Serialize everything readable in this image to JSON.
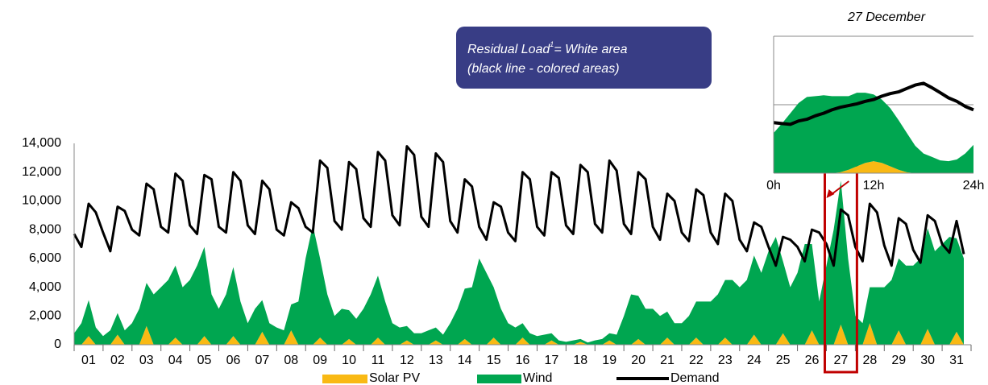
{
  "chart_data": [
    {
      "type": "area",
      "xlim": [
        0,
        744
      ],
      "ylim": [
        0,
        14000
      ],
      "yticks": [
        0,
        {
          "value": 2000,
          "label": "2,000"
        },
        {
          "value": 4000,
          "label": "4,000"
        },
        {
          "value": 6000,
          "label": "6,000"
        },
        {
          "value": 8000,
          "label": "8,000"
        },
        {
          "value": 10000,
          "label": "10,000"
        },
        {
          "value": 12000,
          "label": "12,000"
        },
        {
          "value": 14000,
          "label": "14,000"
        }
      ],
      "xticks": [
        {
          "value": 12,
          "label": "01"
        },
        {
          "value": 36,
          "label": "02"
        },
        {
          "value": 60,
          "label": "03"
        },
        {
          "value": 84,
          "label": "04"
        },
        {
          "value": 108,
          "label": "05"
        },
        {
          "value": 132,
          "label": "06"
        },
        {
          "value": 156,
          "label": "07"
        },
        {
          "value": 180,
          "label": "08"
        },
        {
          "value": 204,
          "label": "09"
        },
        {
          "value": 228,
          "label": "10"
        },
        {
          "value": 252,
          "label": "11"
        },
        {
          "value": 276,
          "label": "12"
        },
        {
          "value": 300,
          "label": "13"
        },
        {
          "value": 324,
          "label": "14"
        },
        {
          "value": 348,
          "label": "15"
        },
        {
          "value": 372,
          "label": "16"
        },
        {
          "value": 396,
          "label": "17"
        },
        {
          "value": 420,
          "label": "18"
        },
        {
          "value": 444,
          "label": "19"
        },
        {
          "value": 468,
          "label": "20"
        },
        {
          "value": 492,
          "label": "21"
        },
        {
          "value": 516,
          "label": "22"
        },
        {
          "value": 540,
          "label": "23"
        },
        {
          "value": 564,
          "label": "24"
        },
        {
          "value": 588,
          "label": "25"
        },
        {
          "value": 612,
          "label": "26"
        },
        {
          "value": 636,
          "label": "27"
        },
        {
          "value": 660,
          "label": "28"
        },
        {
          "value": 684,
          "label": "29"
        },
        {
          "value": 708,
          "label": "30"
        },
        {
          "value": 732,
          "label": "31"
        }
      ],
      "grid": false,
      "highlight": {
        "tick": 26,
        "color": "#c00000"
      },
      "annotation": {
        "line1": "Residual Load",
        "footnote": "1",
        "line1_rest": "= White area",
        "line2": "(black line - colored areas)"
      },
      "x": [
        0,
        6,
        12,
        18,
        24,
        30,
        36,
        42,
        48,
        54,
        60,
        66,
        72,
        78,
        84,
        90,
        96,
        102,
        108,
        114,
        120,
        126,
        132,
        138,
        144,
        150,
        156,
        162,
        168,
        174,
        180,
        186,
        192,
        198,
        204,
        210,
        216,
        222,
        228,
        234,
        240,
        246,
        252,
        258,
        264,
        270,
        276,
        282,
        288,
        294,
        300,
        306,
        312,
        318,
        324,
        330,
        336,
        342,
        348,
        354,
        360,
        366,
        372,
        378,
        384,
        390,
        396,
        402,
        408,
        414,
        420,
        426,
        432,
        438,
        444,
        450,
        456,
        462,
        468,
        474,
        480,
        486,
        492,
        498,
        504,
        510,
        516,
        522,
        528,
        534,
        540,
        546,
        552,
        558,
        564,
        570,
        576,
        582,
        588,
        594,
        600,
        606,
        612,
        618,
        624,
        630,
        636,
        642,
        648,
        654,
        660,
        666,
        672,
        678,
        684,
        690,
        696,
        702,
        708,
        714,
        720,
        726,
        732,
        738
      ],
      "series": [
        {
          "name": "Solar PV",
          "type": "area",
          "color": "#f9b914",
          "values": [
            0,
            0,
            600,
            0,
            0,
            0,
            700,
            0,
            0,
            0,
            1300,
            0,
            0,
            0,
            500,
            0,
            0,
            0,
            600,
            0,
            0,
            0,
            600,
            0,
            0,
            0,
            900,
            0,
            0,
            0,
            1000,
            0,
            0,
            0,
            500,
            0,
            0,
            0,
            400,
            0,
            0,
            0,
            500,
            0,
            0,
            0,
            300,
            0,
            0,
            0,
            300,
            0,
            0,
            0,
            400,
            0,
            0,
            0,
            500,
            0,
            0,
            0,
            500,
            0,
            0,
            0,
            300,
            0,
            0,
            0,
            200,
            0,
            0,
            0,
            300,
            0,
            0,
            0,
            400,
            0,
            0,
            0,
            500,
            0,
            0,
            0,
            500,
            0,
            0,
            0,
            500,
            0,
            0,
            0,
            700,
            0,
            0,
            0,
            800,
            0,
            0,
            0,
            1000,
            0,
            0,
            0,
            1400,
            0,
            0,
            0,
            1500,
            0,
            0,
            0,
            1000,
            0,
            0,
            0,
            1100,
            0,
            0,
            0,
            900,
            0
          ]
        },
        {
          "name": "Wind",
          "type": "area",
          "color": "#00a650",
          "values": [
            800,
            1500,
            2500,
            1200,
            600,
            1000,
            1500,
            1000,
            1500,
            2500,
            3000,
            3500,
            4000,
            4500,
            5000,
            4000,
            4500,
            5500,
            6200,
            3500,
            2500,
            3500,
            4800,
            3000,
            1500,
            2500,
            2200,
            1500,
            1200,
            1000,
            1800,
            3000,
            6000,
            8300,
            5500,
            3500,
            2000,
            2500,
            2000,
            1800,
            2500,
            3500,
            4300,
            3000,
            1500,
            1200,
            1000,
            800,
            800,
            1000,
            900,
            700,
            1500,
            2500,
            3500,
            4000,
            6000,
            5000,
            3500,
            2500,
            1500,
            1200,
            1000,
            800,
            600,
            700,
            500,
            300,
            200,
            300,
            200,
            150,
            300,
            400,
            500,
            700,
            2000,
            3500,
            3000,
            2500,
            2500,
            2000,
            1800,
            1500,
            1500,
            2000,
            2500,
            3000,
            3000,
            3500,
            4000,
            4500,
            4000,
            4500,
            5500,
            5000,
            6500,
            7500,
            5000,
            4000,
            5000,
            7000,
            6000,
            3000,
            5500,
            8000,
            10000,
            6000,
            2000,
            1500,
            2500,
            4000,
            4000,
            4500,
            5000,
            5500,
            5500,
            6000,
            7000,
            6500,
            7000,
            7500,
            6500,
            6000
          ]
        },
        {
          "name": "Demand",
          "type": "line",
          "color": "#000000",
          "values": [
            7700,
            6800,
            9800,
            9200,
            7800,
            6500,
            9600,
            9300,
            8000,
            7600,
            11200,
            10800,
            8200,
            7800,
            11900,
            11400,
            8300,
            7700,
            11800,
            11500,
            8200,
            7800,
            12000,
            11400,
            8300,
            7700,
            11400,
            10800,
            8000,
            7600,
            9900,
            9500,
            8200,
            7800,
            12800,
            12300,
            8600,
            8000,
            12700,
            12200,
            8800,
            8200,
            13400,
            12800,
            9000,
            8300,
            13800,
            13200,
            8900,
            8200,
            13300,
            12700,
            8600,
            7800,
            11500,
            11000,
            8200,
            7300,
            9900,
            9600,
            7800,
            7200,
            12000,
            11500,
            8200,
            7600,
            12000,
            11600,
            8300,
            7700,
            12500,
            12000,
            8400,
            7800,
            12800,
            12100,
            8400,
            7700,
            12000,
            11500,
            8200,
            7300,
            10500,
            10000,
            7800,
            7200,
            10800,
            10400,
            7800,
            7000,
            10500,
            10000,
            7300,
            6500,
            8500,
            8200,
            6800,
            5500,
            7500,
            7300,
            6800,
            5800,
            8000,
            7800,
            7000,
            5500,
            9400,
            9000,
            6800,
            5800,
            9800,
            9200,
            6900,
            5500,
            8800,
            8400,
            6600,
            5700,
            9000,
            8600,
            7000,
            6400,
            8600,
            6300
          ]
        }
      ]
    },
    {
      "type": "area",
      "title": "27 December",
      "xlim": [
        0,
        24
      ],
      "ylim": [
        0,
        16000
      ],
      "yticks": [
        0,
        8000,
        16000
      ],
      "ytick_labels": false,
      "grid": true,
      "xticks": [
        {
          "value": 0,
          "label": "0h"
        },
        {
          "value": 12,
          "label": "12h"
        },
        {
          "value": 24,
          "label": "24h"
        }
      ],
      "x": [
        0,
        1,
        2,
        3,
        4,
        5,
        6,
        7,
        8,
        9,
        10,
        11,
        12,
        13,
        14,
        15,
        16,
        17,
        18,
        19,
        20,
        21,
        22,
        23,
        24
      ],
      "series": [
        {
          "name": "Solar PV",
          "type": "area",
          "color": "#f9b914",
          "values": [
            0,
            0,
            0,
            0,
            0,
            0,
            0,
            0,
            100,
            400,
            800,
            1200,
            1400,
            1200,
            800,
            400,
            100,
            0,
            0,
            0,
            0,
            0,
            0,
            0,
            0
          ]
        },
        {
          "name": "Wind",
          "type": "area",
          "color": "#00a650",
          "values": [
            4700,
            5800,
            7000,
            8200,
            8900,
            9000,
            9100,
            9000,
            8900,
            8600,
            8600,
            8200,
            7800,
            7400,
            6800,
            5800,
            4600,
            3200,
            2300,
            1900,
            1500,
            1400,
            1600,
            2300,
            3300
          ]
        },
        {
          "name": "Demand",
          "type": "line",
          "color": "#000000",
          "values": [
            5900,
            5800,
            5700,
            6100,
            6300,
            6700,
            7000,
            7400,
            7700,
            7900,
            8100,
            8400,
            8600,
            9000,
            9300,
            9500,
            9900,
            10300,
            10500,
            10000,
            9400,
            8800,
            8400,
            7800,
            7400
          ]
        }
      ]
    }
  ]
}
